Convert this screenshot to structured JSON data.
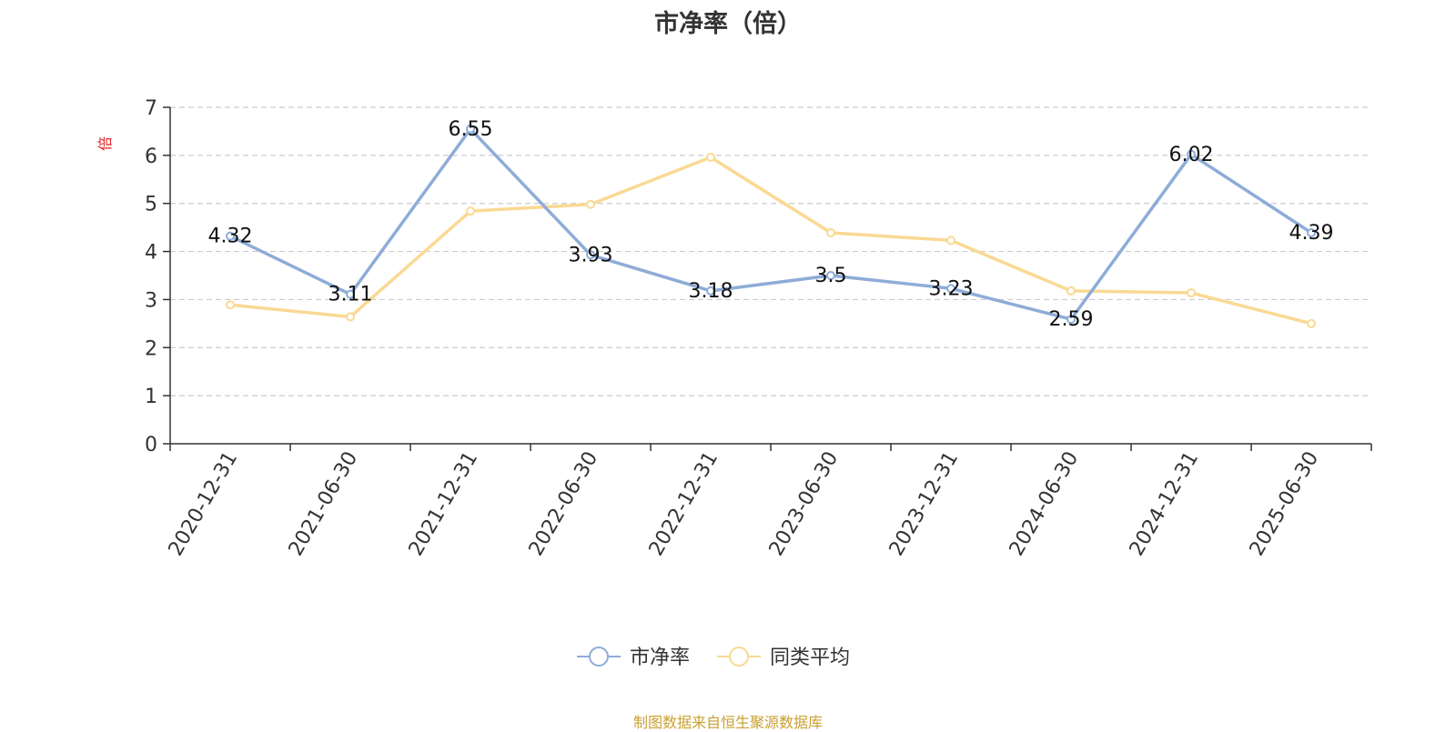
{
  "chart_data": {
    "type": "line",
    "title": "市净率（倍）",
    "ylabel": "倍",
    "xlabel": "",
    "categories": [
      "2020-12-31",
      "2021-06-30",
      "2021-12-31",
      "2022-06-30",
      "2022-12-31",
      "2023-06-30",
      "2023-12-31",
      "2024-06-30",
      "2024-12-31",
      "2025-06-30"
    ],
    "series": [
      {
        "name": "市净率",
        "color": "#8eacd8",
        "values": [
          4.32,
          3.11,
          6.55,
          3.93,
          3.18,
          3.5,
          3.23,
          2.59,
          6.02,
          4.39
        ],
        "show_labels": true
      },
      {
        "name": "同类平均",
        "color": "#fad994",
        "values": [
          2.89,
          2.64,
          4.84,
          4.98,
          5.96,
          4.39,
          4.23,
          3.18,
          3.14,
          2.5
        ],
        "show_labels": false
      }
    ],
    "ylim": [
      0,
      7
    ],
    "yticks": [
      0,
      1,
      2,
      3,
      4,
      5,
      6,
      7
    ],
    "grid": true,
    "legend": "bottom-center"
  },
  "source_note": "制图数据来自恒生聚源数据库"
}
